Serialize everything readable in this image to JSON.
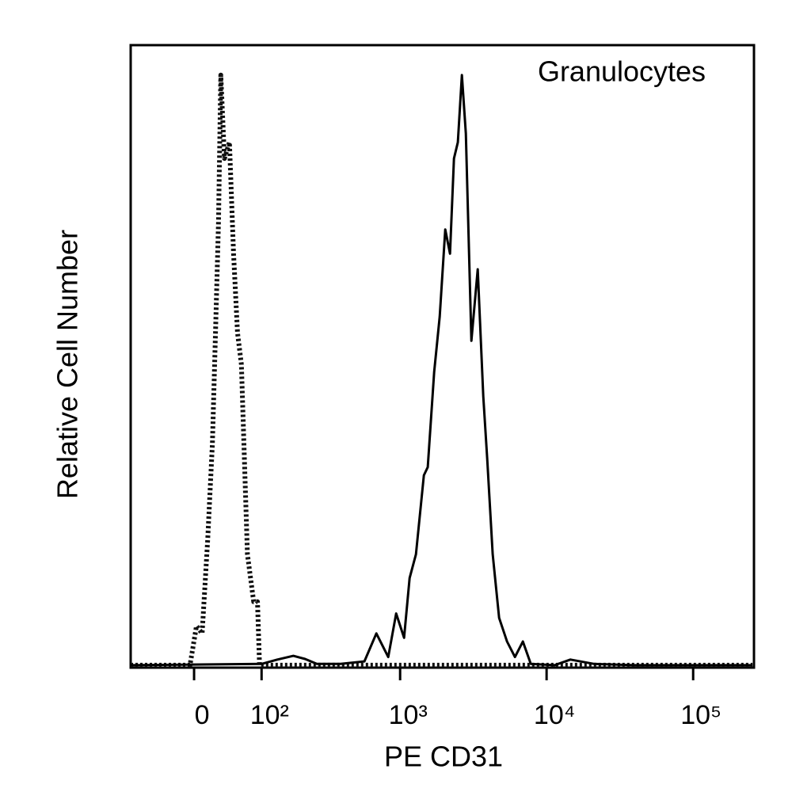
{
  "chart_data": {
    "type": "line",
    "annotation": "Granulocytes",
    "xlabel": "PE CD31",
    "ylabel": "Relative Cell Number",
    "xscale": "biexponential",
    "xlim": [
      -92,
      260000
    ],
    "ylim": [
      0,
      100
    ],
    "xticks": [
      {
        "value": 0,
        "label": "0"
      },
      {
        "value": 100,
        "label": "10²"
      },
      {
        "value": 1000,
        "label": "10³"
      },
      {
        "value": 10000,
        "label": "10⁴"
      },
      {
        "value": 100000,
        "label": "10⁵"
      }
    ],
    "series": [
      {
        "color": "#111111",
        "style": "dotted",
        "x": [
          -92,
          -5,
          3,
          10,
          17,
          23,
          27,
          31,
          34,
          39,
          46,
          52,
          58,
          64,
          74,
          85,
          92,
          96,
          100,
          254000
        ],
        "values": [
          0.4,
          0.4,
          6.7,
          5.5,
          20.7,
          36.0,
          53.8,
          71.6,
          95.2,
          81.8,
          84.4,
          66.5,
          53.8,
          48.7,
          18.2,
          10.6,
          10.6,
          0.4,
          0.4,
          0.4
        ]
      },
      {
        "color": "#000000",
        "style": "solid",
        "x": [
          -92,
          100,
          135,
          179,
          218,
          265,
          389,
          569,
          687,
          829,
          939,
          1064,
          1161,
          1283,
          1453,
          1546,
          1709,
          1864,
          2034,
          2192,
          2332,
          2481,
          2642,
          2811,
          3067,
          3390,
          3698,
          3935,
          4290,
          4742,
          5370,
          6080,
          6890,
          7800,
          11330,
          14530,
          21100,
          39300,
          254000
        ],
        "values": [
          0.4,
          0.6,
          1.3,
          1.9,
          1.4,
          0.6,
          0.6,
          1.0,
          5.5,
          1.7,
          8.7,
          4.8,
          14.4,
          18.2,
          30.9,
          32.2,
          47.5,
          56.4,
          70.4,
          66.5,
          81.8,
          84.4,
          95.2,
          85.8,
          52.5,
          64.0,
          43.6,
          33.5,
          18.2,
          8.0,
          4.2,
          1.7,
          4.2,
          0.6,
          0.4,
          1.3,
          0.6,
          0.4,
          0.4
        ]
      }
    ]
  }
}
